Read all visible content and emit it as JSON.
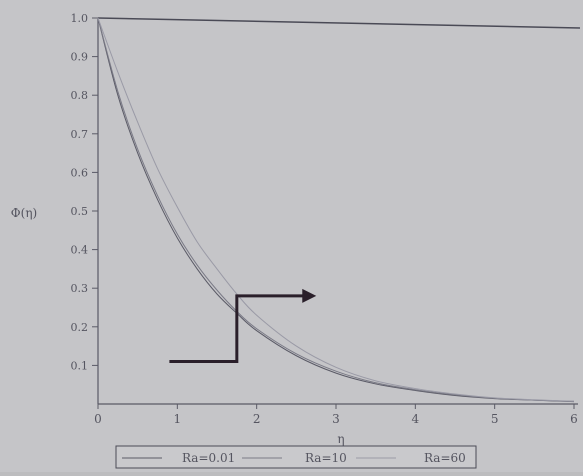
{
  "chart_data": {
    "type": "line",
    "title": "",
    "xlabel": "η",
    "ylabel": "Φ(η)",
    "xlim": [
      0,
      6
    ],
    "ylim": [
      0,
      1.0
    ],
    "xticks": [
      0,
      1,
      2,
      3,
      4,
      5,
      6
    ],
    "xtick_labels": [
      "0",
      "1",
      "2",
      "3",
      "4",
      "5",
      "6"
    ],
    "yticks": [
      0.1,
      0.2,
      0.3,
      0.4,
      0.5,
      0.6,
      0.7,
      0.8,
      0.9,
      1.0
    ],
    "ytick_labels": [
      "0.1",
      "0.2",
      "0.3",
      "0.4",
      "0.5",
      "0.6",
      "0.7",
      "0.8",
      "0.9",
      "1.0"
    ],
    "grid": false,
    "legend_position": "bottom",
    "x": [
      0,
      0.25,
      0.5,
      0.75,
      1.0,
      1.25,
      1.5,
      1.75,
      2.0,
      2.5,
      3.0,
      3.5,
      4.0,
      4.5,
      5.0,
      5.5,
      6.0
    ],
    "series": [
      {
        "name": "Ra=0.01",
        "color": "#5a5a66",
        "values": [
          1.0,
          0.8,
          0.65,
          0.53,
          0.43,
          0.35,
          0.285,
          0.235,
          0.19,
          0.125,
          0.08,
          0.052,
          0.035,
          0.022,
          0.014,
          0.01,
          0.006
        ]
      },
      {
        "name": "Ra=10",
        "color": "#7a7a86",
        "values": [
          1.0,
          0.81,
          0.66,
          0.54,
          0.44,
          0.36,
          0.295,
          0.24,
          0.195,
          0.13,
          0.085,
          0.055,
          0.037,
          0.024,
          0.015,
          0.01,
          0.007
        ]
      },
      {
        "name": "Ra=60",
        "color": "#9a9aa6",
        "values": [
          1.0,
          0.86,
          0.73,
          0.61,
          0.51,
          0.42,
          0.35,
          0.285,
          0.23,
          0.15,
          0.095,
          0.06,
          0.04,
          0.026,
          0.016,
          0.011,
          0.007
        ]
      }
    ],
    "annotation": {
      "type": "arrow",
      "description": "L-shaped arrow pointing up then right",
      "color": "#2a1f2a",
      "points": [
        [
          0.9,
          0.11
        ],
        [
          1.75,
          0.11
        ],
        [
          1.75,
          0.28
        ],
        [
          2.6,
          0.28
        ]
      ]
    }
  }
}
